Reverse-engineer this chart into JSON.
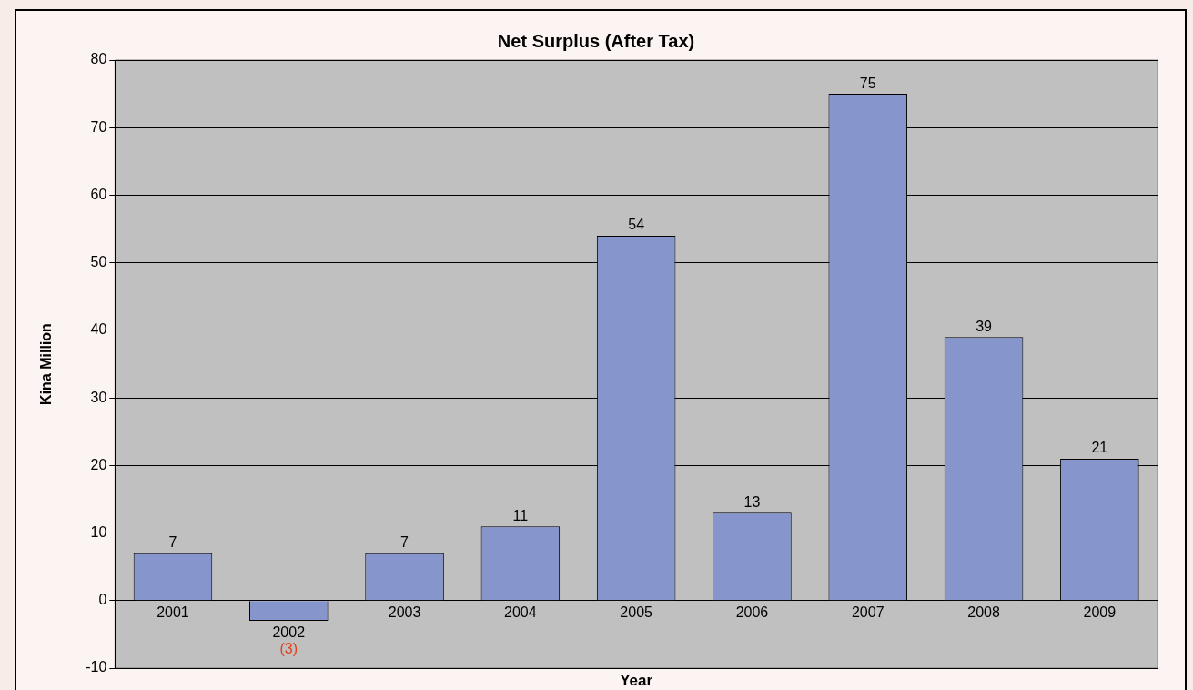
{
  "chart_data": {
    "type": "bar",
    "title": "Net Surplus (After Tax)",
    "xlabel": "Year",
    "ylabel": "Kina Million",
    "categories": [
      "2001",
      "2002",
      "2003",
      "2004",
      "2005",
      "2006",
      "2007",
      "2008",
      "2009"
    ],
    "values": [
      7,
      -3,
      7,
      11,
      54,
      13,
      75,
      39,
      21
    ],
    "value_labels": [
      "7",
      "(3)",
      "7",
      "11",
      "54",
      "13",
      "75",
      "39",
      "21"
    ],
    "color": "#8696cc",
    "ylim": [
      -10,
      80
    ],
    "yticks": [
      -10,
      0,
      10,
      20,
      30,
      40,
      50,
      60,
      70,
      80
    ],
    "grid": "y",
    "legend": false
  }
}
